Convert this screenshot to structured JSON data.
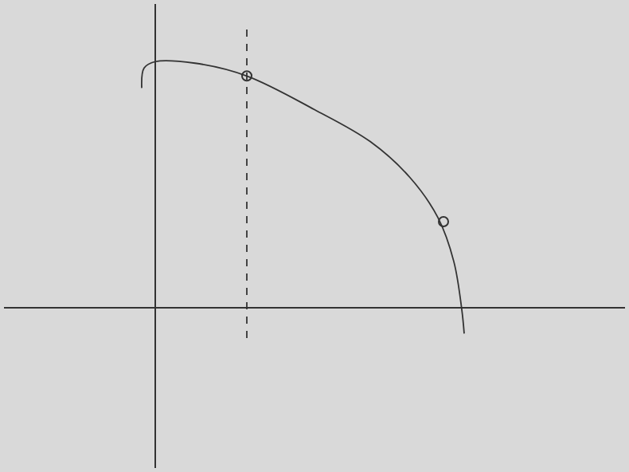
{
  "chart_data": {
    "type": "line",
    "xlim": [
      -1.9,
      5.9
    ],
    "ylim": [
      -2.0,
      3.8
    ],
    "grid": false,
    "tick_labels": false,
    "series": [
      {
        "type": "line",
        "color": "#333333",
        "line_style": "solid",
        "x": [
          -0.17,
          -0.14,
          0,
          0.5,
          1.15,
          2.0,
          2.7,
          3.2,
          3.55,
          3.75,
          3.85,
          3.88
        ],
        "values": [
          2.75,
          3.0,
          3.08,
          3.06,
          2.9,
          2.48,
          2.08,
          1.63,
          1.13,
          0.58,
          -0.02,
          -0.32
        ]
      },
      {
        "type": "scatter",
        "color": "#333333",
        "marker": "circle-open",
        "x": [
          1.15,
          3.62
        ],
        "values": [
          2.9,
          1.08
        ]
      },
      {
        "type": "line",
        "color": "#333333",
        "line_style": "dashed",
        "x": [
          1.15,
          1.15
        ],
        "values": [
          3.48,
          -0.42
        ]
      }
    ]
  }
}
